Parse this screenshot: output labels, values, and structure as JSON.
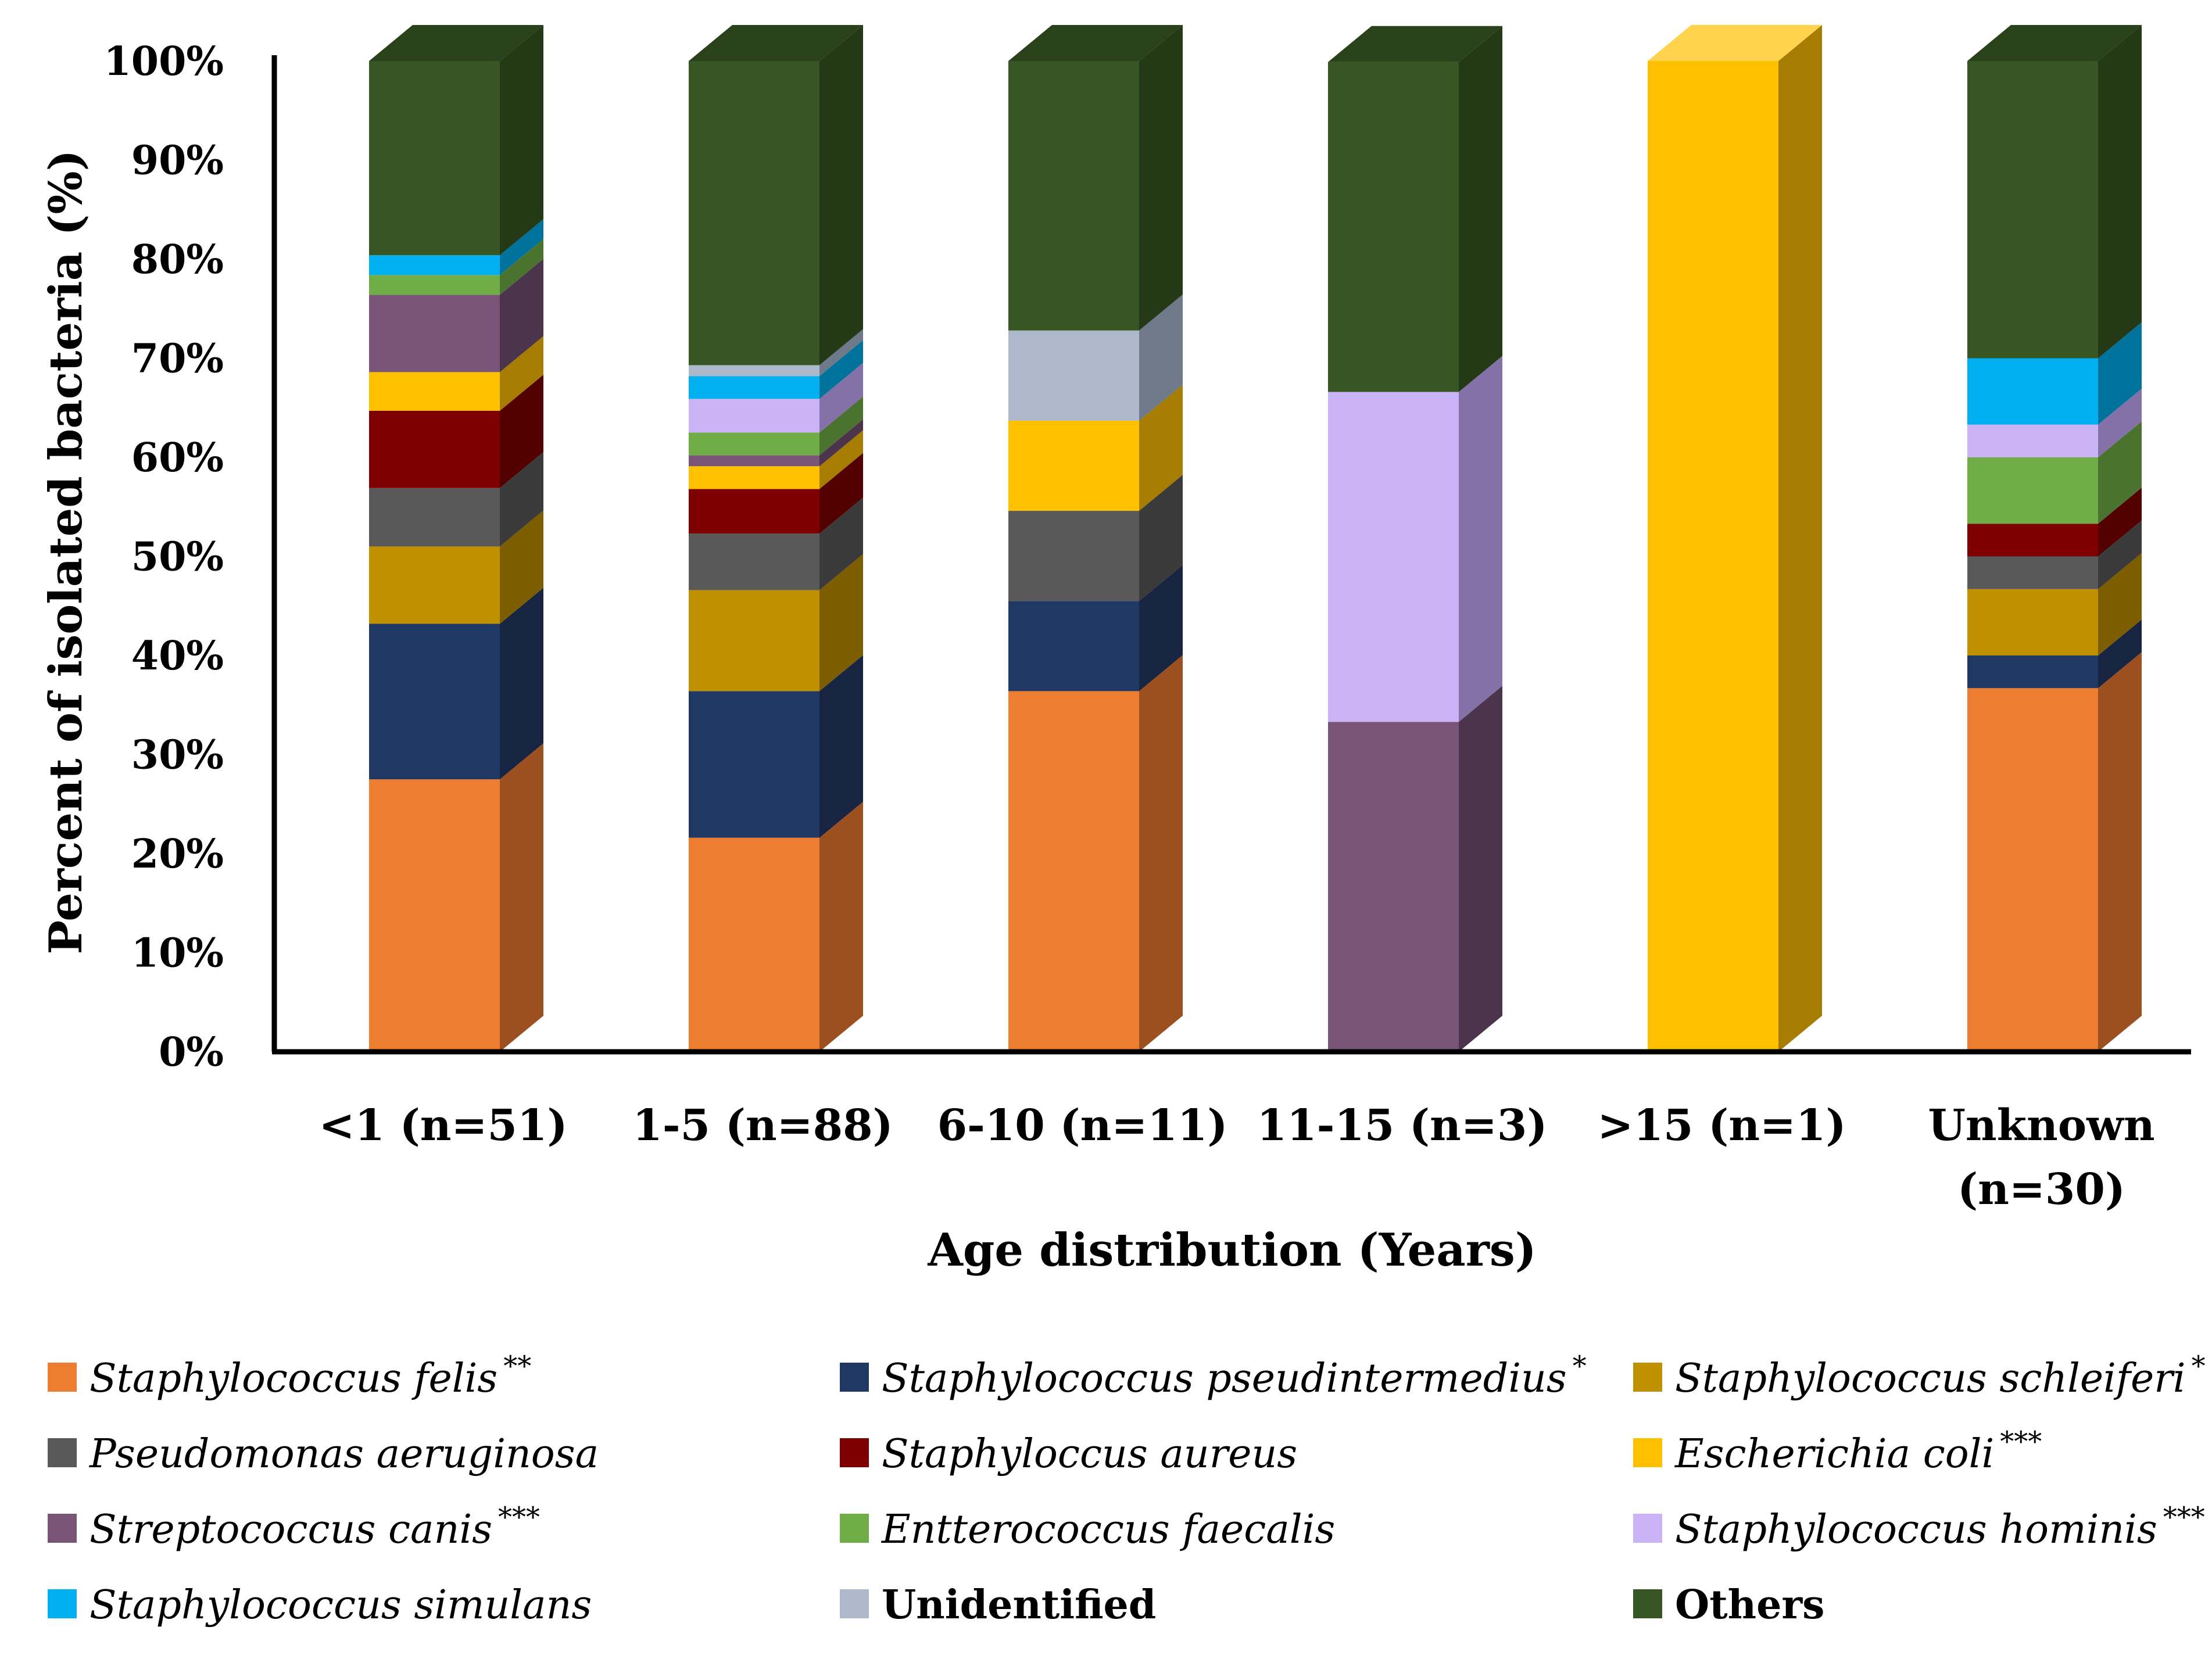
{
  "chart_data": {
    "type": "stacked-bar-3d",
    "title": "",
    "xlabel": "Age distribution  (Years)",
    "ylabel": "Percent of isolated bacteria (%)",
    "ylim": [
      0,
      100
    ],
    "yticks": [
      "0%",
      "10%",
      "20%",
      "30%",
      "40%",
      "50%",
      "60%",
      "70%",
      "80%",
      "90%",
      "100%"
    ],
    "grid": false,
    "legend_position": "bottom",
    "categories": [
      {
        "label": "<1 (n=51)",
        "sublabel": ""
      },
      {
        "label": "1-5  (n=88)",
        "sublabel": ""
      },
      {
        "label": "6-10  (n=11)",
        "sublabel": ""
      },
      {
        "label": "11-15 (n=3)",
        "sublabel": ""
      },
      {
        "label": ">15 (n=1)",
        "sublabel": ""
      },
      {
        "label": "Unknown",
        "sublabel": "(n=30)"
      }
    ],
    "series": [
      {
        "name": "Staphylococcus felis",
        "stars": "**",
        "italic": true,
        "color": "#ED7D31",
        "side": "#9C4F1F",
        "top": "#F2A36E",
        "values": [
          27.5,
          21.6,
          36.4,
          0,
          0,
          36.7
        ]
      },
      {
        "name": "Staphylococcus pseudintermedius",
        "stars": "*",
        "italic": true,
        "color": "#203864",
        "side": "#172542",
        "top": "#3A5486",
        "values": [
          15.7,
          14.8,
          9.1,
          0,
          0,
          3.3
        ]
      },
      {
        "name": "Staphylococcus schleiferi",
        "stars": "*",
        "italic": true,
        "color": "#BF9000",
        "side": "#7C5E00",
        "top": "#D4AD36",
        "values": [
          7.8,
          10.2,
          0,
          0,
          0,
          6.7
        ]
      },
      {
        "name": "Pseudomonas aeruginosa",
        "stars": "",
        "italic": true,
        "color": "#595959",
        "side": "#3A3A3A",
        "top": "#7F7F7F",
        "values": [
          5.9,
          5.7,
          9.1,
          0,
          0,
          3.3
        ]
      },
      {
        "name": "Staphyloccus aureus",
        "stars": "",
        "italic": true,
        "color": "#7F0000",
        "side": "#520000",
        "top": "#A63A3A",
        "values": [
          7.8,
          4.5,
          0,
          0,
          0,
          3.3
        ]
      },
      {
        "name": "Escherichia coli",
        "stars": "***",
        "italic": true,
        "color": "#FFC000",
        "side": "#A67D00",
        "top": "#FFD34D",
        "values": [
          3.9,
          2.3,
          9.1,
          0,
          100,
          0
        ]
      },
      {
        "name": "Streptococcus canis",
        "stars": "***",
        "italic": true,
        "color": "#7A5379",
        "side": "#4D344D",
        "top": "#9A779A",
        "values": [
          7.8,
          1.1,
          0,
          33.3,
          0,
          0
        ]
      },
      {
        "name": "Entterococcus faecalis",
        "stars": "",
        "italic": true,
        "color": "#70AD47",
        "side": "#4A732F",
        "top": "#94C474",
        "values": [
          2.0,
          2.3,
          0,
          0,
          0,
          6.7
        ]
      },
      {
        "name": "Staphylococcus hominis",
        "stars": "***",
        "italic": true,
        "color": "#CBB3F7",
        "side": "#8471A8",
        "top": "#DCCBFA",
        "values": [
          0,
          3.4,
          0,
          33.3,
          0,
          3.3
        ]
      },
      {
        "name": "Staphylococcus simulans",
        "stars": "",
        "italic": true,
        "color": "#00B0F0",
        "side": "#00739C",
        "top": "#4DC8F5",
        "values": [
          2.0,
          2.3,
          0,
          0,
          0,
          6.7
        ]
      },
      {
        "name": "Unidentified",
        "stars": "",
        "italic": false,
        "color": "#ADB9CA",
        "side": "#6E7A8A",
        "top": "#C6D0DC",
        "values": [
          0,
          1.1,
          9.1,
          0,
          0,
          0
        ]
      },
      {
        "name": "Others",
        "stars": "",
        "italic": false,
        "color": "#375623",
        "side": "#243916",
        "top": "#2A4219",
        "values": [
          19.6,
          30.7,
          27.3,
          33.3,
          0,
          30.0
        ]
      }
    ]
  }
}
